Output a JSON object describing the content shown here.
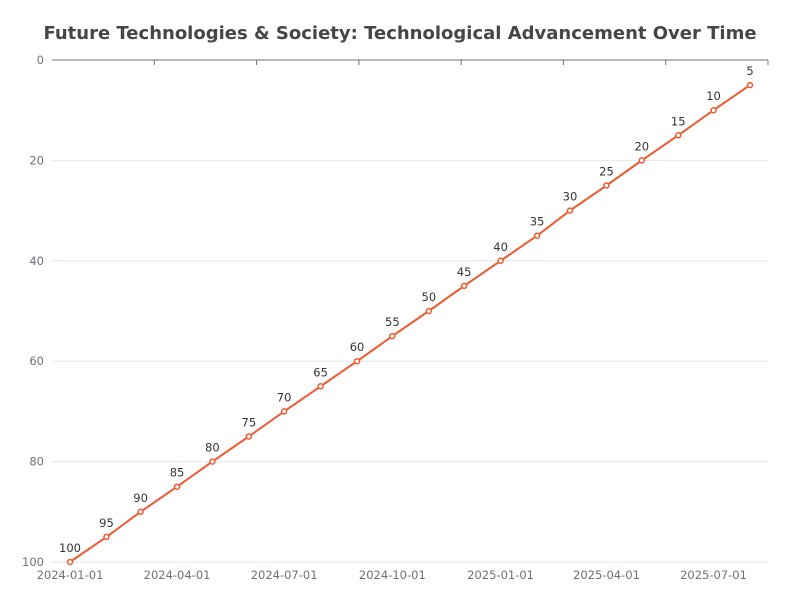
{
  "chart_data": {
    "type": "line",
    "title": "Future Technologies & Society: Technological Advancement Over Time",
    "xlabel": "",
    "ylabel": "",
    "x_axis": {
      "type": "time",
      "range": [
        "2024-01-01",
        "2025-08-01"
      ],
      "tick_labels": [
        "2024-01-01",
        "2024-04-01",
        "2024-07-01",
        "2024-10-01",
        "2025-01-01",
        "2025-04-01",
        "2025-07-01"
      ]
    },
    "y_axis": {
      "inverted": true,
      "ylim": [
        0,
        100
      ],
      "tick_labels": [
        "0",
        "20",
        "40",
        "60",
        "80",
        "100"
      ]
    },
    "grid": "horizontal",
    "legend": "none",
    "series": [
      {
        "color": "#ee5a2f",
        "points": [
          {
            "x": "2024-01-01",
            "y": 100
          },
          {
            "x": "2024-02-01",
            "y": 95
          },
          {
            "x": "2024-03-01",
            "y": 90
          },
          {
            "x": "2024-04-01",
            "y": 85
          },
          {
            "x": "2024-05-01",
            "y": 80
          },
          {
            "x": "2024-06-01",
            "y": 75
          },
          {
            "x": "2024-07-01",
            "y": 70
          },
          {
            "x": "2024-08-01",
            "y": 65
          },
          {
            "x": "2024-09-01",
            "y": 60
          },
          {
            "x": "2024-10-01",
            "y": 55
          },
          {
            "x": "2024-11-01",
            "y": 50
          },
          {
            "x": "2024-12-01",
            "y": 45
          },
          {
            "x": "2025-01-01",
            "y": 40
          },
          {
            "x": "2025-02-01",
            "y": 35
          },
          {
            "x": "2025-03-01",
            "y": 30
          },
          {
            "x": "2025-04-01",
            "y": 25
          },
          {
            "x": "2025-05-01",
            "y": 20
          },
          {
            "x": "2025-06-01",
            "y": 15
          },
          {
            "x": "2025-07-01",
            "y": 10
          },
          {
            "x": "2025-08-01",
            "y": 5
          }
        ]
      }
    ],
    "colors": {
      "axis": "#6e7079",
      "grid": "#e0e6f1",
      "title": "#464646"
    }
  }
}
